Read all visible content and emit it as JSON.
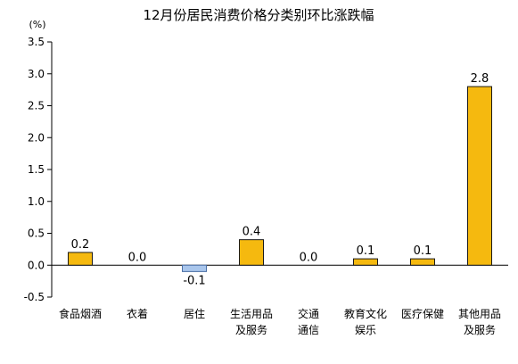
{
  "chart_data": {
    "type": "bar",
    "title": "12月份居民消费价格分类别环比涨跌幅",
    "ylabel": "(%)",
    "xlabel": "",
    "ylim": [
      -0.5,
      3.5
    ],
    "yticks": [
      -0.5,
      0.0,
      0.5,
      1.0,
      1.5,
      2.0,
      2.5,
      3.0,
      3.5
    ],
    "ytick_labels": [
      "-0.5",
      "0.0",
      "0.5",
      "1.0",
      "1.5",
      "2.0",
      "2.5",
      "3.0",
      "3.5"
    ],
    "grid": false,
    "legend": "none",
    "categories": [
      [
        "食品烟酒"
      ],
      [
        "衣着"
      ],
      [
        "居住"
      ],
      [
        "生活用品",
        "及服务"
      ],
      [
        "交通",
        "通信"
      ],
      [
        "教育文化",
        "娱乐"
      ],
      [
        "医疗保健"
      ],
      [
        "其他用品",
        "及服务"
      ]
    ],
    "values": [
      0.2,
      0.0,
      -0.1,
      0.4,
      0.0,
      0.1,
      0.1,
      2.8
    ],
    "value_labels": [
      "0.2",
      "0.0",
      "-0.1",
      "0.4",
      "0.0",
      "0.1",
      "0.1",
      "2.8"
    ],
    "colors": {
      "positive_fill": "#F5B90F",
      "positive_stroke": "#1a1a1a",
      "negative_fill": "#A9C6EC",
      "negative_stroke": "#4a6fa5",
      "axis": "#000000",
      "text": "#000000"
    }
  }
}
